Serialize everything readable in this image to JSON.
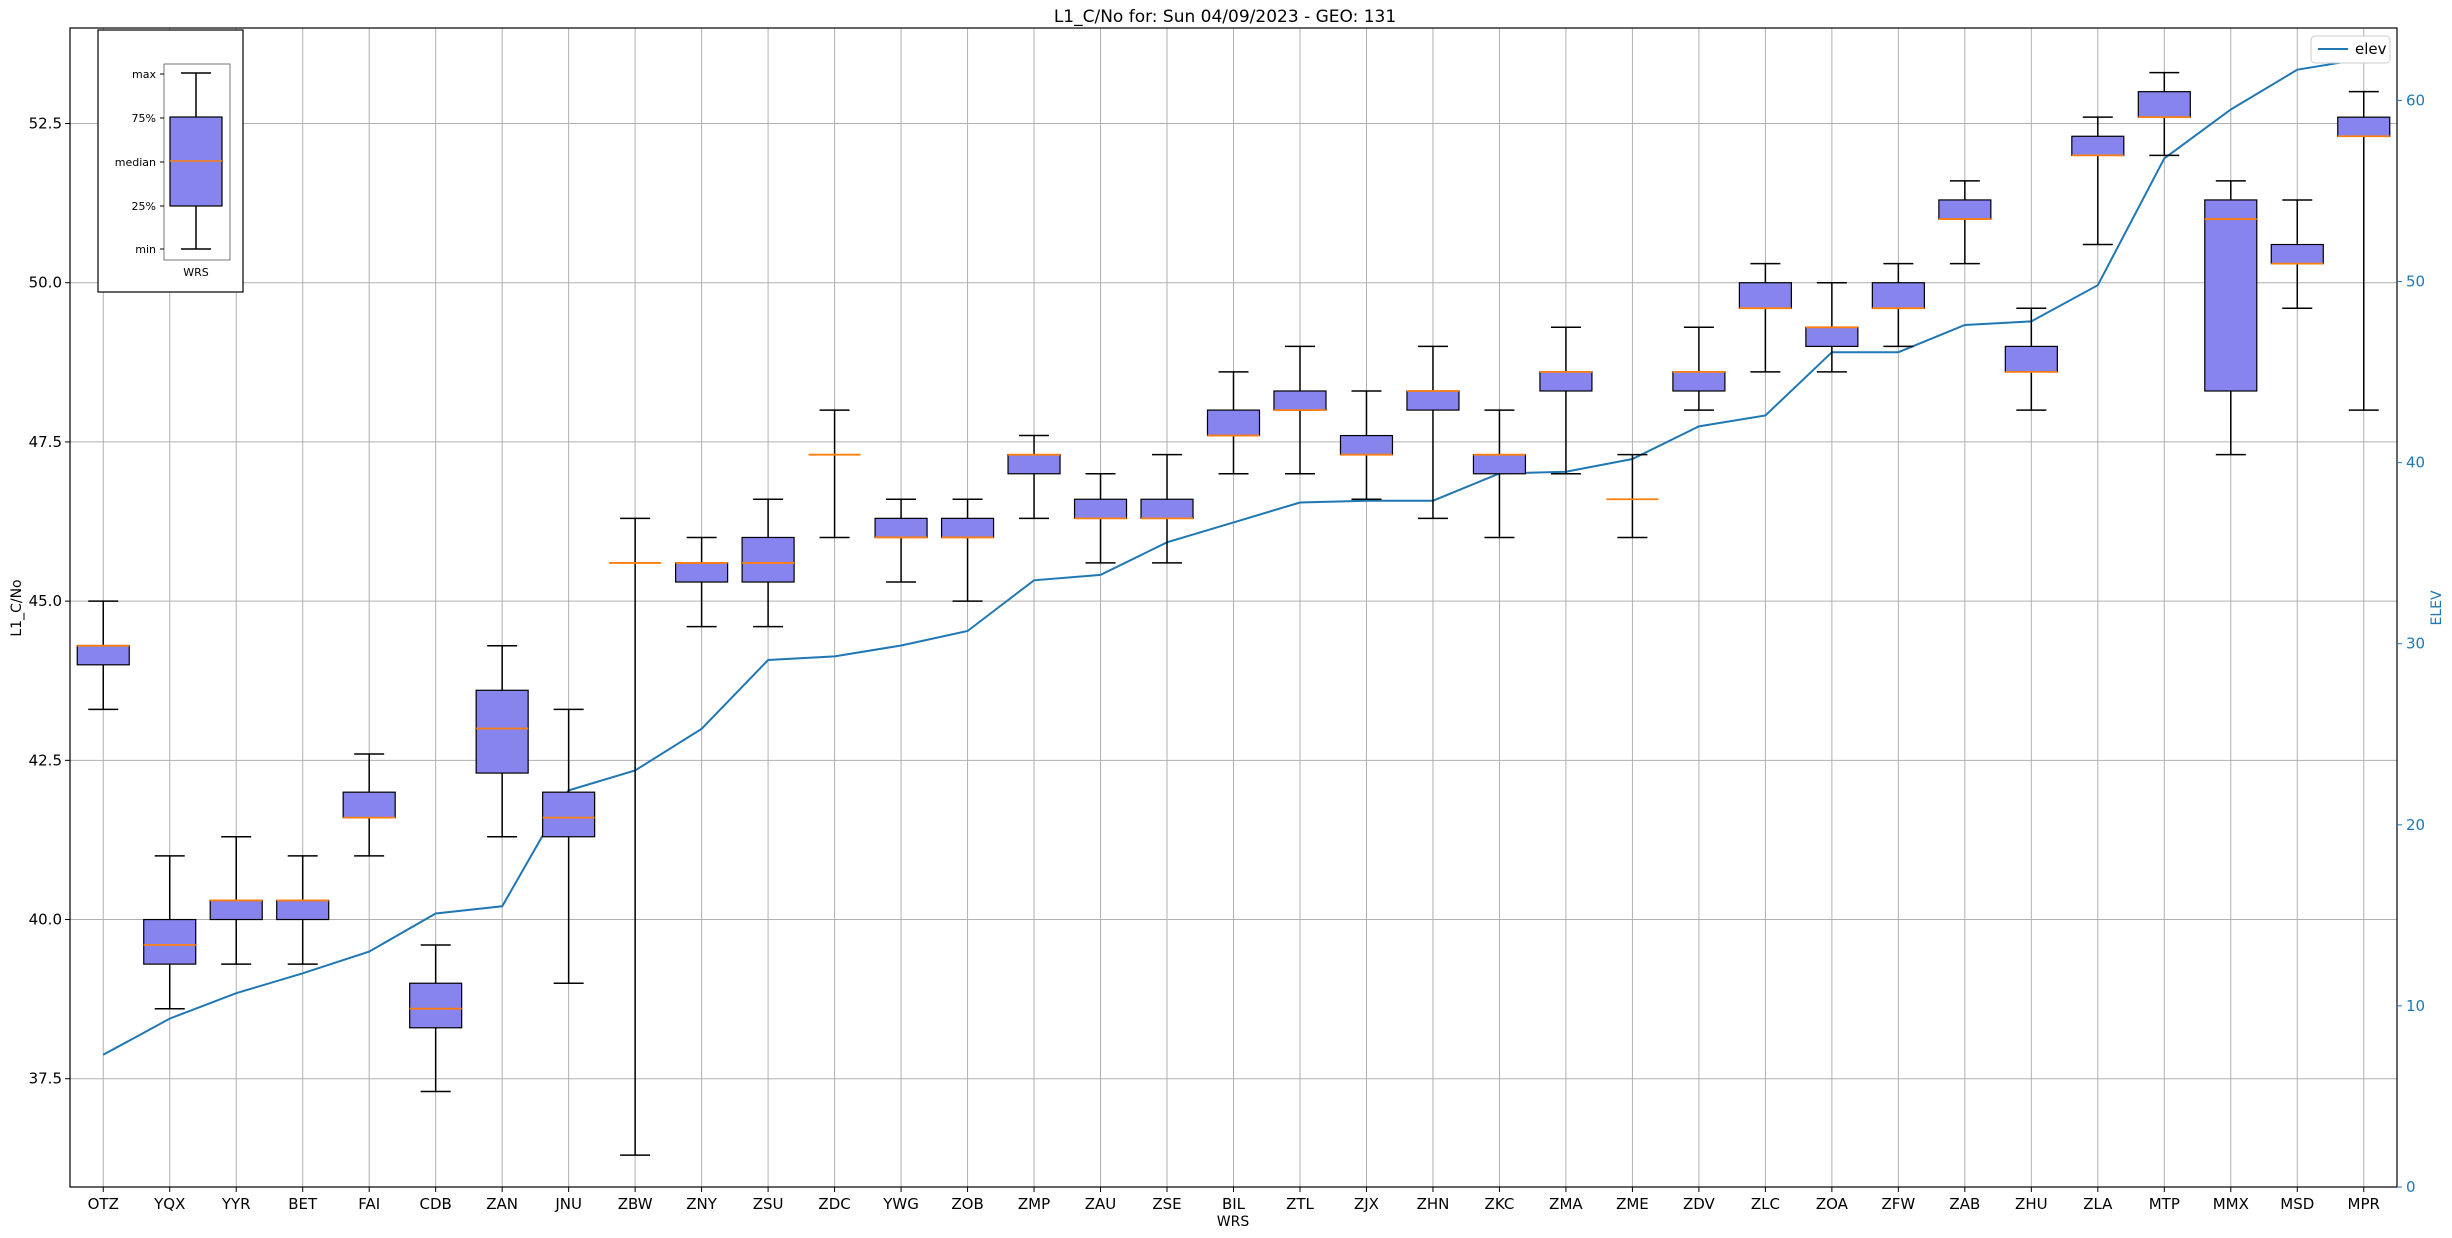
{
  "chart_data": {
    "type": "box",
    "title": "L1_C/No for: Sun 04/09/2023 - GEO: 131",
    "xlabel": "WRS",
    "ylabel": "L1_C/No",
    "y2label": "ELEV",
    "ylim": [
      35.8,
      54.0
    ],
    "y2lim": [
      0,
      64
    ],
    "yticks": [
      "37.5",
      "40.0",
      "42.5",
      "45.0",
      "47.5",
      "50.0",
      "52.5"
    ],
    "y2ticks": [
      "0",
      "10",
      "20",
      "30",
      "40",
      "50",
      "60"
    ],
    "grid": true,
    "legend": {
      "position": "top-right",
      "entries": [
        "elev"
      ]
    },
    "colors": {
      "box_fill": "#8784ee",
      "median": "#ff7f0e",
      "elev_line": "#1f77b4",
      "grid": "#b0b0b0"
    },
    "categories": [
      "OTZ",
      "YQX",
      "YYR",
      "BET",
      "FAI",
      "CDB",
      "ZAN",
      "JNU",
      "ZBW",
      "ZNY",
      "ZSU",
      "ZDC",
      "YWG",
      "ZOB",
      "ZMP",
      "ZAU",
      "ZSE",
      "BIL",
      "ZTL",
      "ZJX",
      "ZHN",
      "ZKC",
      "ZMA",
      "ZME",
      "ZDV",
      "ZLC",
      "ZOA",
      "ZFW",
      "ZAB",
      "ZHU",
      "ZLA",
      "MTP",
      "MMX",
      "MSD",
      "MPR"
    ],
    "boxes": [
      {
        "min": 43.3,
        "q1": 44.0,
        "median": 44.3,
        "q3": 44.3,
        "max": 45.0
      },
      {
        "min": 38.6,
        "q1": 39.3,
        "median": 39.6,
        "q3": 40.0,
        "max": 41.0
      },
      {
        "min": 39.3,
        "q1": 40.0,
        "median": 40.3,
        "q3": 40.3,
        "max": 41.3
      },
      {
        "min": 39.3,
        "q1": 40.0,
        "median": 40.3,
        "q3": 40.3,
        "max": 41.0
      },
      {
        "min": 41.0,
        "q1": 41.6,
        "median": 41.6,
        "q3": 42.0,
        "max": 42.6
      },
      {
        "min": 37.3,
        "q1": 38.3,
        "median": 38.6,
        "q3": 39.0,
        "max": 39.6
      },
      {
        "min": 41.3,
        "q1": 42.3,
        "median": 43.0,
        "q3": 43.6,
        "max": 44.3
      },
      {
        "min": 39.0,
        "q1": 41.3,
        "median": 41.6,
        "q3": 42.0,
        "max": 43.3
      },
      {
        "min": 36.3,
        "q1": 45.6,
        "median": 45.6,
        "q3": 45.6,
        "max": 46.3
      },
      {
        "min": 44.6,
        "q1": 45.3,
        "median": 45.6,
        "q3": 45.6,
        "max": 46.0
      },
      {
        "min": 44.6,
        "q1": 45.3,
        "median": 45.6,
        "q3": 46.0,
        "max": 46.6
      },
      {
        "min": 46.0,
        "q1": 47.3,
        "median": 47.3,
        "q3": 47.3,
        "max": 48.0
      },
      {
        "min": 45.3,
        "q1": 46.0,
        "median": 46.0,
        "q3": 46.3,
        "max": 46.6
      },
      {
        "min": 45.0,
        "q1": 46.0,
        "median": 46.0,
        "q3": 46.3,
        "max": 46.6
      },
      {
        "min": 46.3,
        "q1": 47.0,
        "median": 47.3,
        "q3": 47.3,
        "max": 47.6
      },
      {
        "min": 45.6,
        "q1": 46.3,
        "median": 46.3,
        "q3": 46.6,
        "max": 47.0
      },
      {
        "min": 45.6,
        "q1": 46.3,
        "median": 46.3,
        "q3": 46.6,
        "max": 47.3
      },
      {
        "min": 47.0,
        "q1": 47.6,
        "median": 47.6,
        "q3": 48.0,
        "max": 48.6
      },
      {
        "min": 47.0,
        "q1": 48.0,
        "median": 48.0,
        "q3": 48.3,
        "max": 49.0
      },
      {
        "min": 46.6,
        "q1": 47.3,
        "median": 47.3,
        "q3": 47.6,
        "max": 48.3
      },
      {
        "min": 46.3,
        "q1": 48.0,
        "median": 48.3,
        "q3": 48.3,
        "max": 49.0
      },
      {
        "min": 46.0,
        "q1": 47.0,
        "median": 47.3,
        "q3": 47.3,
        "max": 48.0
      },
      {
        "min": 47.0,
        "q1": 48.3,
        "median": 48.6,
        "q3": 48.6,
        "max": 49.3
      },
      {
        "min": 46.0,
        "q1": 46.6,
        "median": 46.6,
        "q3": 46.6,
        "max": 47.3
      },
      {
        "min": 48.0,
        "q1": 48.3,
        "median": 48.6,
        "q3": 48.6,
        "max": 49.3
      },
      {
        "min": 48.6,
        "q1": 49.6,
        "median": 49.6,
        "q3": 50.0,
        "max": 50.3
      },
      {
        "min": 48.6,
        "q1": 49.0,
        "median": 49.3,
        "q3": 49.3,
        "max": 50.0
      },
      {
        "min": 49.0,
        "q1": 49.6,
        "median": 49.6,
        "q3": 50.0,
        "max": 50.3
      },
      {
        "min": 50.3,
        "q1": 51.0,
        "median": 51.0,
        "q3": 51.3,
        "max": 51.6
      },
      {
        "min": 48.0,
        "q1": 48.6,
        "median": 48.6,
        "q3": 49.0,
        "max": 49.6
      },
      {
        "min": 50.6,
        "q1": 52.0,
        "median": 52.0,
        "q3": 52.3,
        "max": 52.6
      },
      {
        "min": 52.0,
        "q1": 52.6,
        "median": 52.6,
        "q3": 53.0,
        "max": 53.3
      },
      {
        "min": 47.3,
        "q1": 48.3,
        "median": 51.0,
        "q3": 51.3,
        "max": 51.6
      },
      {
        "min": 49.6,
        "q1": 50.3,
        "median": 50.3,
        "q3": 50.6,
        "max": 51.3
      },
      {
        "min": 48.0,
        "q1": 52.3,
        "median": 52.3,
        "q3": 52.6,
        "max": 53.0
      }
    ],
    "series": [
      {
        "name": "elev",
        "axis": "right",
        "values": [
          7.3,
          9.3,
          10.7,
          11.8,
          13.0,
          15.1,
          15.5,
          21.9,
          23.0,
          25.3,
          29.1,
          29.3,
          29.9,
          30.7,
          33.5,
          33.8,
          35.6,
          36.7,
          37.8,
          37.9,
          37.9,
          39.4,
          39.5,
          40.2,
          42.0,
          42.6,
          46.1,
          46.1,
          47.6,
          47.8,
          49.8,
          56.8,
          59.5,
          61.7,
          62.3
        ]
      }
    ],
    "inset_legend": {
      "labels": [
        "max",
        "75%",
        "median",
        "25%",
        "min"
      ],
      "category": "WRS"
    }
  }
}
